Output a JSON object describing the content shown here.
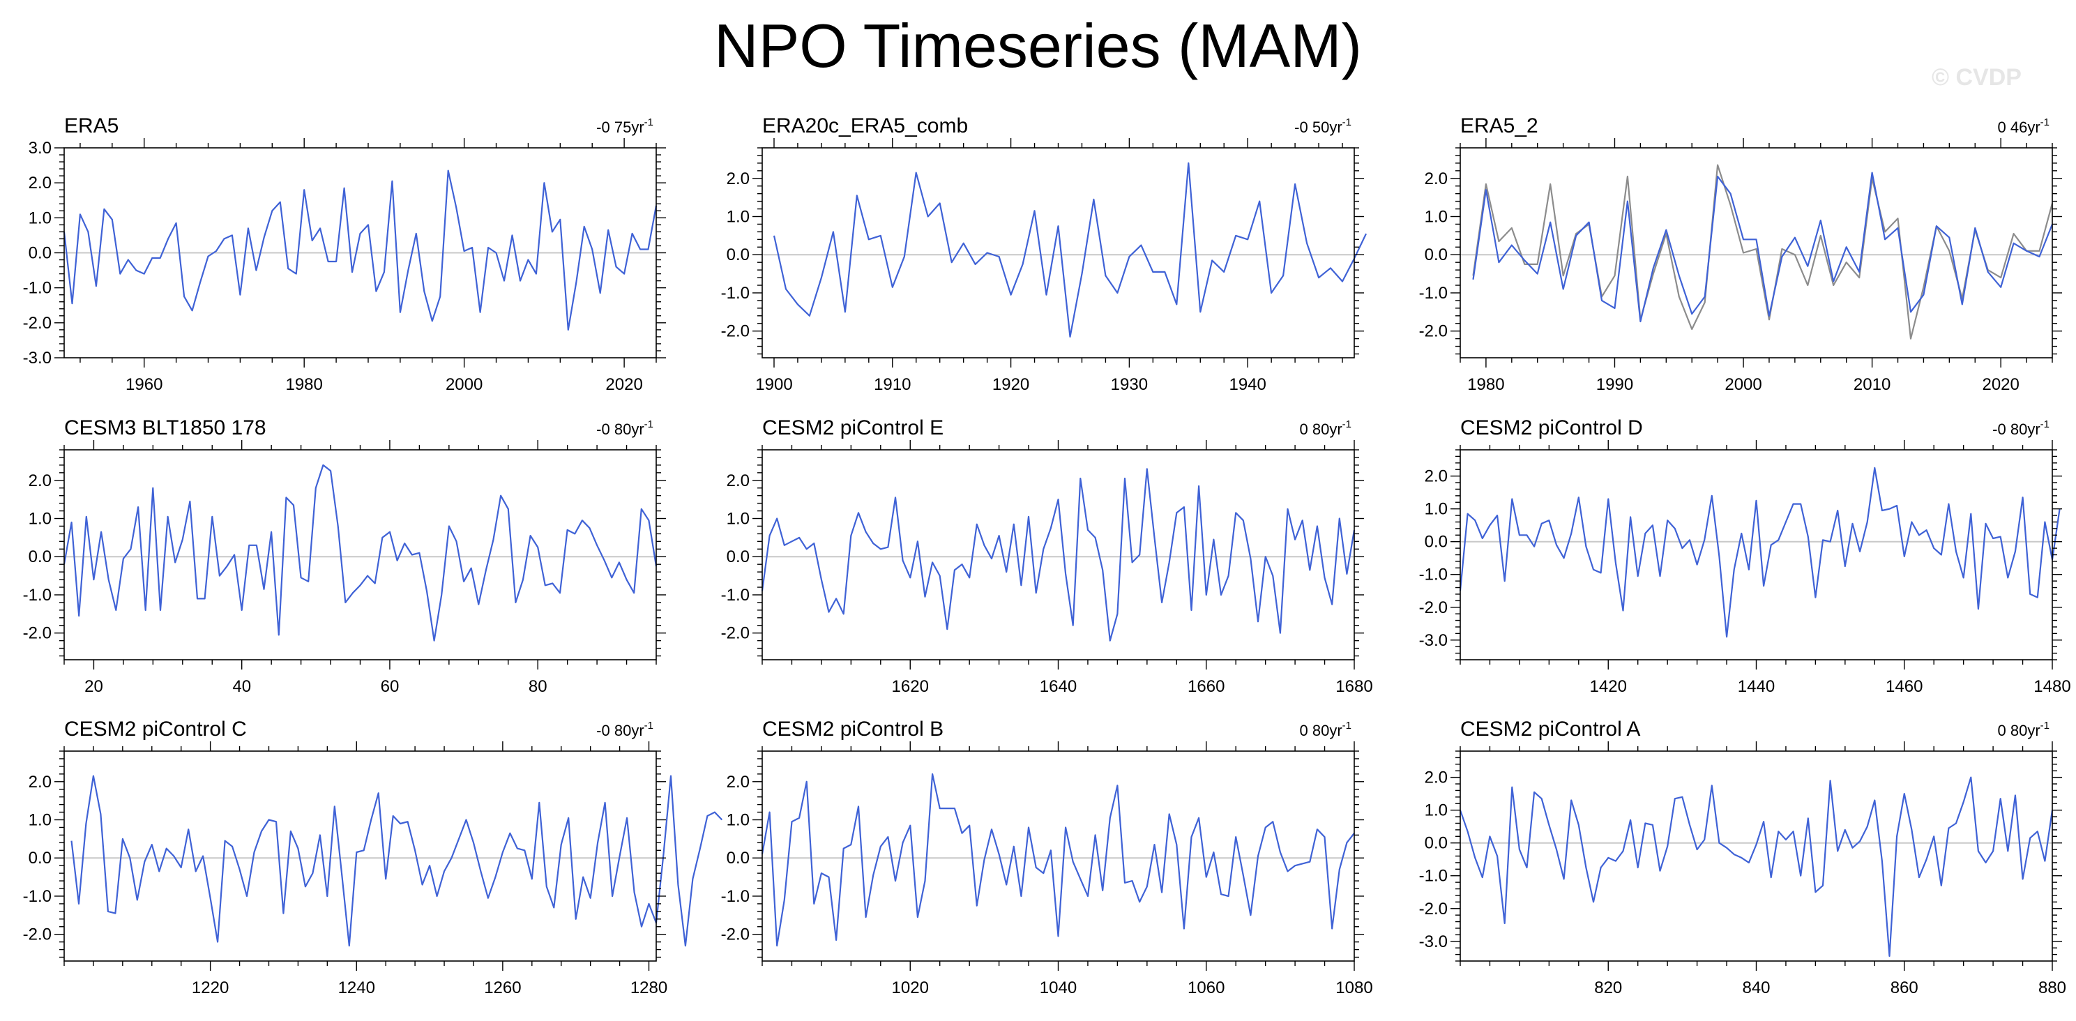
{
  "title": "NPO Timeseries (MAM)",
  "watermark": "© CVDP",
  "chart_data": [
    {
      "type": "line",
      "title": "ERA5",
      "trend": "-0 75yr",
      "trend_unit": "-1",
      "xlim": [
        1950,
        2024
      ],
      "ylim": [
        -3.0,
        3.0
      ],
      "xticks": [
        1960,
        1980,
        2000,
        2020
      ],
      "yticks": [
        -3.0,
        -2.0,
        -1.0,
        0.0,
        1.0,
        2.0,
        3.0
      ],
      "ytick_labels": [
        "-3.0",
        "-2.0",
        "-1.0",
        "0.0",
        "1.0",
        "2.0",
        "3.0"
      ],
      "x_start": 1950,
      "series": [
        {
          "color": "#3f62d6",
          "values": [
            0.6,
            -1.45,
            1.1,
            0.6,
            -0.95,
            1.25,
            0.95,
            -0.6,
            -0.2,
            -0.5,
            -0.6,
            -0.15,
            -0.15,
            0.4,
            0.85,
            -1.25,
            -1.65,
            -0.85,
            -0.1,
            0.05,
            0.4,
            0.5,
            -1.2,
            0.7,
            -0.5,
            0.45,
            1.2,
            1.45,
            -0.45,
            -0.6,
            1.8,
            0.35,
            0.7,
            -0.25,
            -0.25,
            1.85,
            -0.55,
            0.55,
            0.8,
            -1.1,
            -0.55,
            2.05,
            -1.7,
            -0.5,
            0.55,
            -1.1,
            -1.95,
            -1.25,
            2.35,
            1.3,
            0.05,
            0.15,
            -1.7,
            0.15,
            0.0,
            -0.8,
            0.5,
            -0.8,
            -0.2,
            -0.6,
            2.0,
            0.6,
            0.95,
            -2.2,
            -0.85,
            0.75,
            0.1,
            -1.15,
            0.65,
            -0.4,
            -0.6,
            0.55,
            0.1,
            0.1,
            1.35
          ]
        }
      ]
    },
    {
      "type": "line",
      "title": "ERA20c_ERA5_comb",
      "trend": "-0 50yr",
      "trend_unit": "-1",
      "xlim": [
        1899,
        1949
      ],
      "ylim": [
        -2.7,
        2.8
      ],
      "xticks": [
        1900,
        1910,
        1920,
        1930,
        1940
      ],
      "yticks": [
        -2.0,
        -1.0,
        0.0,
        1.0,
        2.0
      ],
      "ytick_labels": [
        "-2.0",
        "-1.0",
        "0.0",
        "1.0",
        "2.0"
      ],
      "x_start": 1900,
      "series": [
        {
          "color": "#3f62d6",
          "values": [
            0.5,
            -0.9,
            -1.3,
            -1.6,
            -0.6,
            0.6,
            -1.5,
            1.55,
            0.4,
            0.5,
            -0.85,
            -0.05,
            2.15,
            1.0,
            1.35,
            -0.2,
            0.3,
            -0.25,
            0.05,
            -0.05,
            -1.05,
            -0.25,
            1.15,
            -1.05,
            0.75,
            -2.15,
            -0.5,
            1.45,
            -0.55,
            -1.0,
            -0.05,
            0.25,
            -0.45,
            -0.45,
            -1.3,
            2.4,
            -1.5,
            -0.15,
            -0.45,
            0.5,
            0.4,
            1.4,
            -1.0,
            -0.55,
            1.85,
            0.3,
            -0.6,
            -0.35,
            -0.7,
            -0.1,
            0.55
          ]
        }
      ]
    },
    {
      "type": "line",
      "title": "ERA5_2",
      "trend": "0 46yr",
      "trend_unit": "-1",
      "xlim": [
        1978,
        2024
      ],
      "ylim": [
        -2.7,
        2.8
      ],
      "xticks": [
        1980,
        1990,
        2000,
        2010,
        2020
      ],
      "yticks": [
        -2.0,
        -1.0,
        0.0,
        1.0,
        2.0
      ],
      "ytick_labels": [
        "-2.0",
        "-1.0",
        "0.0",
        "1.0",
        "2.0"
      ],
      "x_start": 1979,
      "series": [
        {
          "color": "#8c8c8c",
          "values": [
            -0.55,
            1.85,
            0.35,
            0.7,
            -0.25,
            -0.25,
            1.85,
            -0.55,
            0.55,
            0.8,
            -1.1,
            -0.55,
            2.05,
            -1.7,
            -0.5,
            0.55,
            -1.1,
            -1.95,
            -1.25,
            2.35,
            1.3,
            0.05,
            0.15,
            -1.7,
            0.15,
            0.0,
            -0.8,
            0.5,
            -0.8,
            -0.2,
            -0.6,
            2.0,
            0.6,
            0.95,
            -2.2,
            -0.85,
            0.75,
            0.1,
            -1.15,
            0.65,
            -0.4,
            -0.6,
            0.55,
            0.1,
            0.1,
            1.35
          ]
        },
        {
          "color": "#3f62d6",
          "values": [
            -0.65,
            1.7,
            -0.2,
            0.25,
            -0.15,
            -0.5,
            0.85,
            -0.9,
            0.5,
            0.85,
            -1.2,
            -1.4,
            1.4,
            -1.75,
            -0.35,
            0.65,
            -0.55,
            -1.55,
            -1.1,
            2.05,
            1.6,
            0.4,
            0.4,
            -1.6,
            -0.05,
            0.45,
            -0.3,
            0.9,
            -0.7,
            0.2,
            -0.45,
            2.15,
            0.4,
            0.7,
            -1.5,
            -1.05,
            0.75,
            0.45,
            -1.3,
            0.7,
            -0.45,
            -0.85,
            0.3,
            0.1,
            -0.05,
            0.8
          ]
        }
      ]
    },
    {
      "type": "line",
      "title": "CESM3 BLT1850 178",
      "trend": "-0 80yr",
      "trend_unit": "-1",
      "xlim": [
        16,
        96
      ],
      "ylim": [
        -2.7,
        2.8
      ],
      "xticks": [
        20,
        40,
        60,
        80
      ],
      "yticks": [
        -2.0,
        -1.0,
        0.0,
        1.0,
        2.0
      ],
      "ytick_labels": [
        "-2.0",
        "-1.0",
        "0.0",
        "1.0",
        "2.0"
      ],
      "x_start": 16,
      "series": [
        {
          "color": "#3f62d6",
          "values": [
            -0.2,
            0.9,
            -1.55,
            1.05,
            -0.6,
            0.65,
            -0.6,
            -1.4,
            -0.05,
            0.2,
            1.3,
            -1.4,
            1.8,
            -1.4,
            1.05,
            -0.15,
            0.45,
            1.45,
            -1.1,
            -1.1,
            1.05,
            -0.5,
            -0.25,
            0.05,
            -1.4,
            0.3,
            0.3,
            -0.85,
            0.65,
            -2.05,
            1.55,
            1.35,
            -0.55,
            -0.65,
            1.8,
            2.4,
            2.25,
            0.8,
            -1.2,
            -0.95,
            -0.75,
            -0.5,
            -0.7,
            0.5,
            0.65,
            -0.1,
            0.35,
            0.05,
            0.1,
            -0.9,
            -2.2,
            -1.0,
            0.8,
            0.4,
            -0.65,
            -0.3,
            -1.25,
            -0.35,
            0.45,
            1.6,
            1.25,
            -1.2,
            -0.6,
            0.55,
            0.25,
            -0.75,
            -0.7,
            -0.95,
            0.7,
            0.6,
            0.95,
            0.75,
            0.3,
            -0.1,
            -0.55,
            -0.15,
            -0.6,
            -0.95,
            1.25,
            0.95,
            -0.25
          ]
        }
      ]
    },
    {
      "type": "line",
      "title": "CESM2 piControl E",
      "trend": "0 80yr",
      "trend_unit": "-1",
      "xlim": [
        1600,
        1680
      ],
      "ylim": [
        -2.7,
        2.8
      ],
      "xticks": [
        1620,
        1640,
        1660,
        1680
      ],
      "yticks": [
        -2.0,
        -1.0,
        0.0,
        1.0,
        2.0
      ],
      "ytick_labels": [
        "-2.0",
        "-1.0",
        "0.0",
        "1.0",
        "2.0"
      ],
      "x_start": 1600,
      "series": [
        {
          "color": "#3f62d6",
          "values": [
            -0.9,
            0.55,
            1.0,
            0.3,
            0.4,
            0.5,
            0.2,
            0.35,
            -0.6,
            -1.45,
            -1.1,
            -1.5,
            0.55,
            1.15,
            0.65,
            0.35,
            0.2,
            0.25,
            1.55,
            -0.1,
            -0.55,
            0.4,
            -1.05,
            -0.15,
            -0.5,
            -1.9,
            -0.35,
            -0.2,
            -0.55,
            0.85,
            0.3,
            -0.05,
            0.55,
            -0.4,
            0.85,
            -0.75,
            1.05,
            -0.95,
            0.2,
            0.75,
            1.5,
            -0.45,
            -1.8,
            2.05,
            0.7,
            0.5,
            -0.35,
            -2.2,
            -1.5,
            2.05,
            -0.15,
            0.05,
            2.3,
            0.5,
            -1.2,
            -0.15,
            1.15,
            1.3,
            -1.4,
            1.85,
            -1.0,
            0.45,
            -1.0,
            -0.5,
            1.15,
            0.95,
            -0.05,
            -1.7,
            0.0,
            -0.5,
            -2.0,
            1.25,
            0.45,
            0.95,
            -0.35,
            0.8,
            -0.55,
            -1.25,
            1.0,
            -0.45,
            0.7
          ]
        }
      ]
    },
    {
      "type": "line",
      "title": "CESM2 piControl D",
      "trend": "-0 80yr",
      "trend_unit": "-1",
      "xlim": [
        1400,
        1480
      ],
      "ylim": [
        -3.6,
        2.8
      ],
      "xticks": [
        1420,
        1440,
        1460,
        1480
      ],
      "yticks": [
        -3.0,
        -2.0,
        -1.0,
        0.0,
        1.0,
        2.0
      ],
      "ytick_labels": [
        "-3.0",
        "-2.0",
        "-1.0",
        "0.0",
        "1.0",
        "2.0"
      ],
      "x_start": 1400,
      "series": [
        {
          "color": "#3f62d6",
          "values": [
            -1.5,
            0.85,
            0.65,
            0.1,
            0.5,
            0.8,
            -1.2,
            1.3,
            0.2,
            0.2,
            -0.15,
            0.55,
            0.65,
            -0.1,
            -0.5,
            0.25,
            1.35,
            -0.15,
            -0.85,
            -0.95,
            1.3,
            -0.65,
            -2.1,
            0.75,
            -1.05,
            0.25,
            0.5,
            -1.05,
            0.65,
            0.4,
            -0.2,
            0.05,
            -0.7,
            0.05,
            1.4,
            -0.45,
            -2.9,
            -0.85,
            0.25,
            -0.85,
            1.25,
            -1.35,
            -0.1,
            0.05,
            0.6,
            1.15,
            1.15,
            0.15,
            -1.7,
            0.05,
            0.0,
            0.95,
            -0.75,
            0.55,
            -0.3,
            0.6,
            2.25,
            0.95,
            1.0,
            1.1,
            -0.45,
            0.6,
            0.2,
            0.35,
            -0.2,
            -0.4,
            1.15,
            -0.3,
            -1.1,
            0.85,
            -2.05,
            0.55,
            0.1,
            0.15,
            -1.1,
            -0.3,
            1.35,
            -1.6,
            -1.7,
            0.6,
            -0.55,
            1.0
          ]
        }
      ]
    },
    {
      "type": "line",
      "title": "CESM2 piControl C",
      "trend": "-0 80yr",
      "trend_unit": "-1",
      "xlim": [
        1200,
        1281
      ],
      "ylim": [
        -2.7,
        2.8
      ],
      "xticks": [
        1220,
        1240,
        1260,
        1280
      ],
      "yticks": [
        -2.0,
        -1.0,
        0.0,
        1.0,
        2.0
      ],
      "ytick_labels": [
        "-2.0",
        "-1.0",
        "0.0",
        "1.0",
        "2.0"
      ],
      "x_start": 1201,
      "series": [
        {
          "color": "#3f62d6",
          "values": [
            0.45,
            -1.2,
            0.9,
            2.15,
            1.15,
            -1.4,
            -1.45,
            0.5,
            0.0,
            -1.1,
            -0.1,
            0.35,
            -0.35,
            0.25,
            0.05,
            -0.25,
            0.75,
            -0.35,
            0.05,
            -1.05,
            -2.2,
            0.45,
            0.3,
            -0.3,
            -1.0,
            0.15,
            0.7,
            1.0,
            0.95,
            -1.45,
            0.7,
            0.25,
            -0.75,
            -0.4,
            0.6,
            -1.0,
            1.35,
            -0.45,
            -2.3,
            0.15,
            0.2,
            1.0,
            1.7,
            -0.55,
            1.1,
            0.9,
            0.95,
            0.2,
            -0.7,
            -0.2,
            -1.0,
            -0.35,
            0.0,
            0.5,
            1.0,
            0.4,
            -0.35,
            -1.05,
            -0.5,
            0.15,
            0.65,
            0.25,
            0.2,
            -0.55,
            1.45,
            -0.75,
            -1.3,
            0.35,
            1.05,
            -1.6,
            -0.5,
            -1.05,
            0.4,
            1.45,
            -1.0,
            0.05,
            1.05,
            -0.9,
            -1.8,
            -1.2,
            -1.7,
            0.1,
            2.15,
            -0.7,
            -2.3,
            -0.55,
            0.25,
            1.1,
            1.2,
            1.0
          ]
        }
      ]
    },
    {
      "type": "line",
      "title": "CESM2 piControl B",
      "trend": "0 80yr",
      "trend_unit": "-1",
      "xlim": [
        1000,
        1080
      ],
      "ylim": [
        -2.7,
        2.8
      ],
      "xticks": [
        1020,
        1040,
        1060,
        1080
      ],
      "yticks": [
        -2.0,
        -1.0,
        0.0,
        1.0,
        2.0
      ],
      "ytick_labels": [
        "-2.0",
        "-1.0",
        "0.0",
        "1.0",
        "2.0"
      ],
      "x_start": 1000,
      "series": [
        {
          "color": "#3f62d6",
          "values": [
            0.1,
            1.2,
            -2.3,
            -1.1,
            0.95,
            1.05,
            2.0,
            -1.2,
            -0.4,
            -0.5,
            -2.15,
            0.25,
            0.35,
            1.35,
            -1.55,
            -0.45,
            0.3,
            0.55,
            -0.6,
            0.4,
            0.85,
            -1.55,
            -0.6,
            2.2,
            1.3,
            1.3,
            1.3,
            0.65,
            0.85,
            -1.25,
            -0.05,
            0.75,
            0.1,
            -0.7,
            0.3,
            -1.0,
            0.8,
            -0.25,
            -0.4,
            0.2,
            -2.05,
            0.8,
            -0.1,
            -0.55,
            -1.0,
            0.6,
            -0.85,
            1.05,
            1.9,
            -0.65,
            -0.6,
            -1.15,
            -0.75,
            0.35,
            -0.9,
            1.15,
            0.35,
            -1.85,
            0.55,
            1.05,
            -0.5,
            0.15,
            -0.95,
            -1.0,
            0.55,
            -0.45,
            -1.5,
            0.05,
            0.8,
            0.95,
            0.15,
            -0.35,
            -0.2,
            -0.15,
            -0.1,
            0.75,
            0.55,
            -1.85,
            -0.3,
            0.4,
            0.65
          ]
        }
      ]
    },
    {
      "type": "line",
      "title": "CESM2 piControl A",
      "trend": "0 80yr",
      "trend_unit": "-1",
      "xlim": [
        800,
        880
      ],
      "ylim": [
        -3.6,
        2.8
      ],
      "xticks": [
        820,
        840,
        860,
        880
      ],
      "yticks": [
        -3.0,
        -2.0,
        -1.0,
        0.0,
        1.0,
        2.0
      ],
      "ytick_labels": [
        "-3.0",
        "-2.0",
        "-1.0",
        "0.0",
        "1.0",
        "2.0"
      ],
      "x_start": 800,
      "series": [
        {
          "color": "#3f62d6",
          "values": [
            1.0,
            0.35,
            -0.45,
            -1.05,
            0.2,
            -0.4,
            -2.45,
            1.7,
            -0.2,
            -0.75,
            1.55,
            1.35,
            0.55,
            -0.2,
            -1.1,
            1.3,
            0.55,
            -0.75,
            -1.8,
            -0.75,
            -0.45,
            -0.55,
            -0.25,
            0.7,
            -0.75,
            0.6,
            0.55,
            -0.85,
            -0.1,
            1.35,
            1.4,
            0.55,
            -0.2,
            0.1,
            1.75,
            0.0,
            -0.15,
            -0.35,
            -0.45,
            -0.6,
            -0.05,
            0.65,
            -1.05,
            0.35,
            0.1,
            0.35,
            -1.0,
            0.75,
            -1.5,
            -1.3,
            1.9,
            -0.25,
            0.4,
            -0.15,
            0.05,
            0.5,
            1.3,
            -0.55,
            -3.45,
            0.2,
            1.5,
            0.4,
            -1.05,
            -0.5,
            0.2,
            -1.3,
            0.45,
            0.6,
            1.25,
            2.0,
            -0.25,
            -0.6,
            -0.25,
            1.35,
            -0.25,
            1.45,
            -1.1,
            0.15,
            0.35,
            -0.55,
            1.0
          ]
        }
      ]
    }
  ]
}
